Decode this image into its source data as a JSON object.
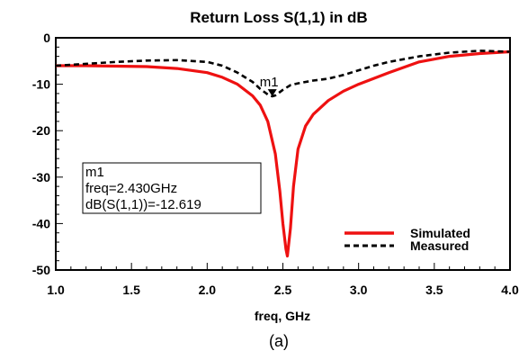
{
  "chart_data": {
    "type": "line",
    "title": "Return Loss S(1,1) in dB",
    "xlabel": "freq, GHz",
    "ylabel": "",
    "xlim": [
      1.0,
      4.0
    ],
    "ylim": [
      -50,
      0
    ],
    "x_ticks": [
      "1.0",
      "1.5",
      "2.0",
      "2.5",
      "3.0",
      "3.5",
      "4.0"
    ],
    "y_ticks": [
      "0",
      "-10",
      "-20",
      "-30",
      "-40",
      "-50"
    ],
    "grid": false,
    "legend_position": "bottom-right",
    "series": [
      {
        "name": "Simulated",
        "color": "#ee1111",
        "style": "solid",
        "x": [
          1.0,
          1.2,
          1.4,
          1.6,
          1.8,
          2.0,
          2.1,
          2.2,
          2.3,
          2.35,
          2.4,
          2.45,
          2.48,
          2.5,
          2.52,
          2.53,
          2.55,
          2.57,
          2.6,
          2.65,
          2.7,
          2.8,
          2.9,
          3.0,
          3.2,
          3.4,
          3.6,
          3.8,
          4.0
        ],
        "y": [
          -6.0,
          -6.0,
          -6.1,
          -6.2,
          -6.6,
          -7.5,
          -8.5,
          -10.0,
          -12.5,
          -14.5,
          -18.0,
          -25.0,
          -33.0,
          -40.0,
          -45.5,
          -47.0,
          -41.0,
          -32.0,
          -24.0,
          -19.0,
          -16.5,
          -13.5,
          -11.5,
          -10.0,
          -7.5,
          -5.2,
          -4.0,
          -3.4,
          -3.0
        ]
      },
      {
        "name": "Measured",
        "color": "#000000",
        "style": "dashed",
        "x": [
          1.0,
          1.2,
          1.4,
          1.6,
          1.8,
          2.0,
          2.1,
          2.2,
          2.3,
          2.35,
          2.4,
          2.43,
          2.45,
          2.5,
          2.55,
          2.6,
          2.7,
          2.8,
          2.9,
          3.0,
          3.1,
          3.2,
          3.4,
          3.6,
          3.8,
          4.0
        ],
        "y": [
          -6.0,
          -5.6,
          -5.2,
          -4.9,
          -4.8,
          -5.2,
          -6.0,
          -7.5,
          -9.5,
          -11.0,
          -12.2,
          -12.6,
          -12.4,
          -11.2,
          -10.2,
          -9.8,
          -9.2,
          -8.8,
          -8.0,
          -7.0,
          -6.0,
          -5.2,
          -4.0,
          -3.2,
          -2.8,
          -3.0
        ]
      }
    ],
    "marker": {
      "name": "m1",
      "x": 2.43,
      "y": -12.619,
      "readout_lines": [
        "m1",
        "freq=2.430GHz",
        "dB(S(1,1))=-12.619"
      ]
    },
    "caption": "(a)"
  }
}
